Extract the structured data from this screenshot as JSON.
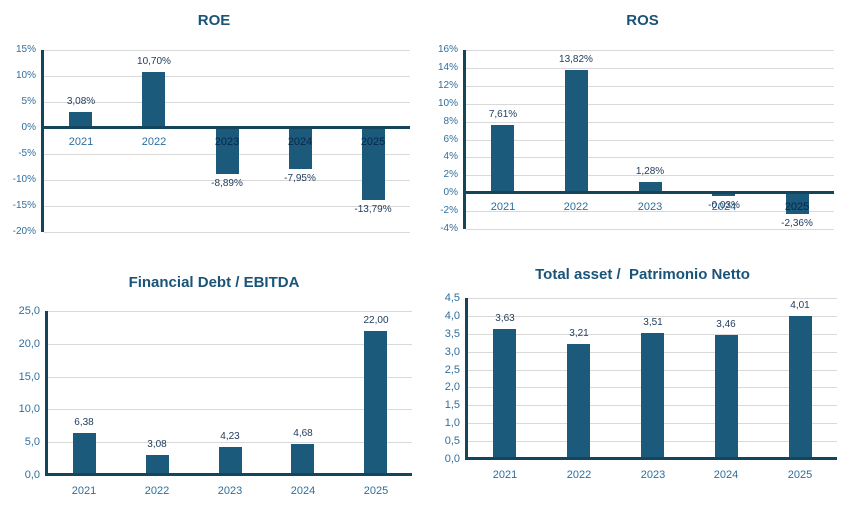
{
  "colors": {
    "background": "#FFFFFF",
    "bar": "#1C5A7C",
    "axis_line": "#14455C",
    "gridline": "#D9D9D9",
    "title": "#1A5478",
    "tick_label": "#2F6F9F",
    "category_label": "#2C6E9C",
    "value_label": "#1E3A5C"
  },
  "chart_data": [
    {
      "id": "roe",
      "type": "bar",
      "title": "ROE",
      "categories": [
        "2021",
        "2022",
        "2023",
        "2024",
        "2025"
      ],
      "values": [
        3.08,
        10.7,
        -8.89,
        -7.95,
        -13.79
      ],
      "value_labels": [
        "3,08%",
        "10,70%",
        "-8,89%",
        "-7,95%",
        "-13,79%"
      ],
      "ylim": [
        -20,
        15
      ],
      "ticks": [
        15,
        10,
        5,
        0,
        -5,
        -10,
        -15,
        -20
      ],
      "tick_labels": [
        "15%",
        "10%",
        "5%",
        "0%",
        "-5%",
        "-10%",
        "-15%",
        "-20%"
      ],
      "grid": true,
      "legend": "none",
      "category_axis": "zero"
    },
    {
      "id": "ros",
      "type": "bar",
      "title": "ROS",
      "categories": [
        "2021",
        "2022",
        "2023",
        "2024",
        "2025"
      ],
      "values": [
        7.61,
        13.82,
        1.28,
        -0.03,
        -2.36
      ],
      "value_labels": [
        "7,61%",
        "13,82%",
        "1,28%",
        "-0,03%",
        "-2,36%"
      ],
      "ylim": [
        -4,
        16
      ],
      "ticks": [
        16,
        14,
        12,
        10,
        8,
        6,
        4,
        2,
        0,
        -2,
        -4
      ],
      "tick_labels": [
        "16%",
        "14%",
        "12%",
        "10%",
        "8%",
        "6%",
        "4%",
        "2%",
        "0%",
        "-2%",
        "-4%"
      ],
      "grid": true,
      "legend": "none",
      "category_axis": "zero"
    },
    {
      "id": "financial-debt-ebitda",
      "type": "bar",
      "title": "Financial Debt / EBITDA",
      "categories": [
        "2021",
        "2022",
        "2023",
        "2024",
        "2025"
      ],
      "values": [
        6.38,
        3.08,
        4.23,
        4.68,
        22.0
      ],
      "value_labels": [
        "6,38",
        "3,08",
        "4,23",
        "4,68",
        "22,00"
      ],
      "ylim": [
        0,
        25
      ],
      "ticks": [
        25,
        20,
        15,
        10,
        5,
        0
      ],
      "tick_labels": [
        "25,0",
        "20,0",
        "15,0",
        "10,0",
        "5,0",
        "0,0"
      ],
      "grid": true,
      "legend": "none",
      "category_axis": "below"
    },
    {
      "id": "total-asset-patrimonio-netto",
      "type": "bar",
      "title": "Total asset /  Patrimonio Netto",
      "categories": [
        "2021",
        "2022",
        "2023",
        "2024",
        "2025"
      ],
      "values": [
        3.63,
        3.21,
        3.51,
        3.46,
        4.01
      ],
      "value_labels": [
        "3,63",
        "3,21",
        "3,51",
        "3,46",
        "4,01"
      ],
      "ylim": [
        0,
        4.5
      ],
      "ticks": [
        4.5,
        4.0,
        3.5,
        3.0,
        2.5,
        2.0,
        1.5,
        1.0,
        0.5,
        0.0
      ],
      "tick_labels": [
        "4,5",
        "4,0",
        "3,5",
        "3,0",
        "2,5",
        "2,0",
        "1,5",
        "1,0",
        "0,5",
        "0,0"
      ],
      "grid": true,
      "legend": "none",
      "category_axis": "below"
    }
  ]
}
